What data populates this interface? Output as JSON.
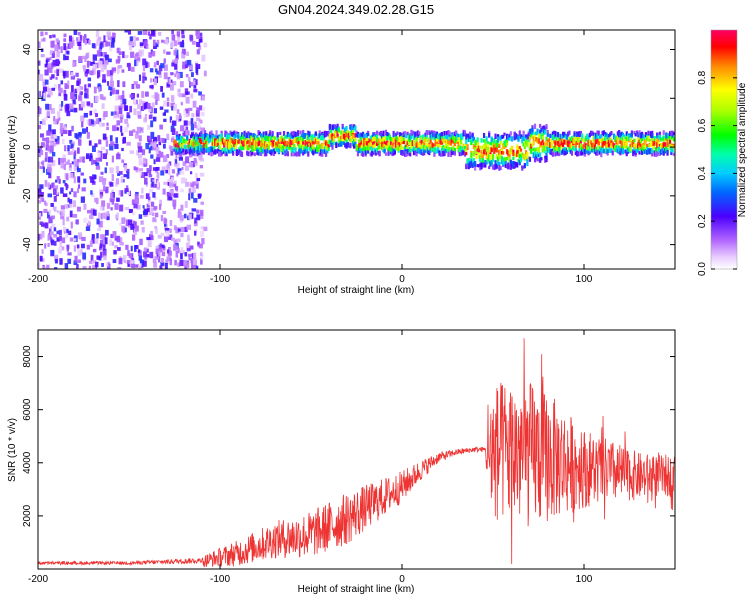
{
  "chart_data": [
    {
      "type": "heatmap",
      "title": "GN04.2024.349.02.28.G15",
      "xlabel": "Height of straight line (km)",
      "ylabel": "Frequency (Hz)",
      "xlim": [
        -200,
        150
      ],
      "ylim": [
        -50,
        48
      ],
      "x_ticks": [
        -200,
        -100,
        0,
        100
      ],
      "x_tick_labels": [
        "-200",
        "-100",
        "0",
        "100"
      ],
      "y_ticks": [
        -40,
        -20,
        0,
        20,
        40
      ],
      "y_tick_labels": [
        "-40",
        "-20",
        "0",
        "20",
        "40"
      ],
      "description_bands": [
        {
          "x_range": [
            -200,
            -110
          ],
          "kind": "broadband noise",
          "amplitude": [
            0.05,
            0.3
          ]
        },
        {
          "x_range": [
            -110,
            -90
          ],
          "kind": "sparse noise",
          "amplitude": [
            0.0,
            0.15
          ]
        },
        {
          "x_range": [
            -125,
            150
          ],
          "kind": "carrier line near 0 Hz",
          "amplitude_peak": 1.0
        }
      ],
      "colorbar": {
        "label": "Normalized spectral amplitude",
        "range": [
          0.0,
          1.0
        ],
        "ticks": [
          0.0,
          0.2,
          0.4,
          0.6,
          0.8
        ],
        "tick_labels": [
          "0.0",
          "0.2",
          "0.4",
          "0.6",
          "0.8"
        ],
        "colors": [
          "#ffffff",
          "#d9b3ff",
          "#8a2be2",
          "#2b00ff",
          "#00a0ff",
          "#00ffcc",
          "#00ff00",
          "#b0ff00",
          "#ffff00",
          "#ff9900",
          "#ff0000",
          "#ff0066"
        ]
      }
    },
    {
      "type": "line",
      "title": "",
      "xlabel": "Height of straight line (km)",
      "ylabel": "SNR (10 * v/v)",
      "xlim": [
        -200,
        150
      ],
      "ylim": [
        0,
        9000
      ],
      "x_ticks": [
        -200,
        -100,
        0,
        100
      ],
      "x_tick_labels": [
        "-200",
        "-100",
        "0",
        "100"
      ],
      "y_ticks": [
        2000,
        4000,
        6000,
        8000
      ],
      "y_tick_labels": [
        "2000",
        "4000",
        "6000",
        "8000"
      ],
      "series": [
        {
          "name": "SNR",
          "color": "#ee3333",
          "envelope_x": [
            -200,
            -150,
            -110,
            -90,
            -70,
            -50,
            -30,
            -15,
            0,
            10,
            20,
            30,
            40,
            46,
            47,
            50,
            60,
            70,
            80,
            90,
            100,
            110,
            120,
            130,
            140,
            150
          ],
          "envelope_mean": [
            200,
            200,
            280,
            600,
            1100,
            1300,
            1900,
            2500,
            3100,
            3700,
            4200,
            4400,
            4500,
            4500,
            4400,
            4400,
            4400,
            4300,
            4200,
            4000,
            3800,
            3700,
            3600,
            3500,
            3500,
            3500
          ],
          "envelope_spread": [
            120,
            120,
            220,
            500,
            700,
            900,
            1000,
            800,
            600,
            400,
            200,
            120,
            100,
            100,
            2200,
            2600,
            2800,
            2800,
            2500,
            2000,
            1500,
            1300,
            1100,
            900,
            800,
            800
          ]
        }
      ]
    }
  ]
}
